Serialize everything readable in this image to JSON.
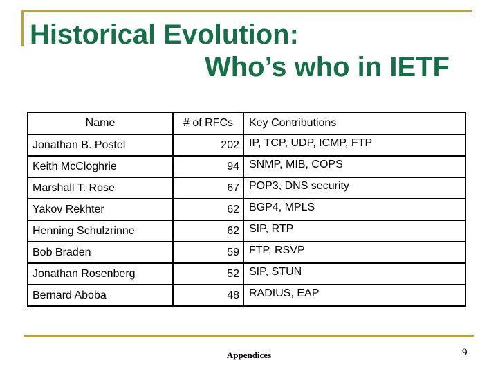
{
  "slide": {
    "title_line1": "Historical Evolution:",
    "title_line2": "Who’s who in IETF",
    "footer": "Appendices",
    "page_number": "9",
    "colors": {
      "title_green": "#156F47",
      "accent_gold": "#C5A227",
      "table_border": "#000000"
    }
  },
  "table": {
    "columns": [
      "Name",
      "# of RFCs",
      "Key Contributions"
    ],
    "rows": [
      {
        "name": "Jonathan B. Postel",
        "rfcs": "202",
        "contributions": "IP, TCP, UDP, ICMP, FTP"
      },
      {
        "name": "Keith McCloghrie",
        "rfcs": "94",
        "contributions": "SNMP, MIB, COPS"
      },
      {
        "name": "Marshall T. Rose",
        "rfcs": "67",
        "contributions": "POP3, DNS security"
      },
      {
        "name": "Yakov Rekhter",
        "rfcs": "62",
        "contributions": "BGP4, MPLS"
      },
      {
        "name": "Henning Schulzrinne",
        "rfcs": "62",
        "contributions": "SIP, RTP"
      },
      {
        "name": "Bob Braden",
        "rfcs": "59",
        "contributions": "FTP, RSVP"
      },
      {
        "name": "Jonathan Rosenberg",
        "rfcs": "52",
        "contributions": "SIP, STUN"
      },
      {
        "name": "Bernard Aboba",
        "rfcs": "48",
        "contributions": "RADIUS, EAP"
      }
    ]
  }
}
